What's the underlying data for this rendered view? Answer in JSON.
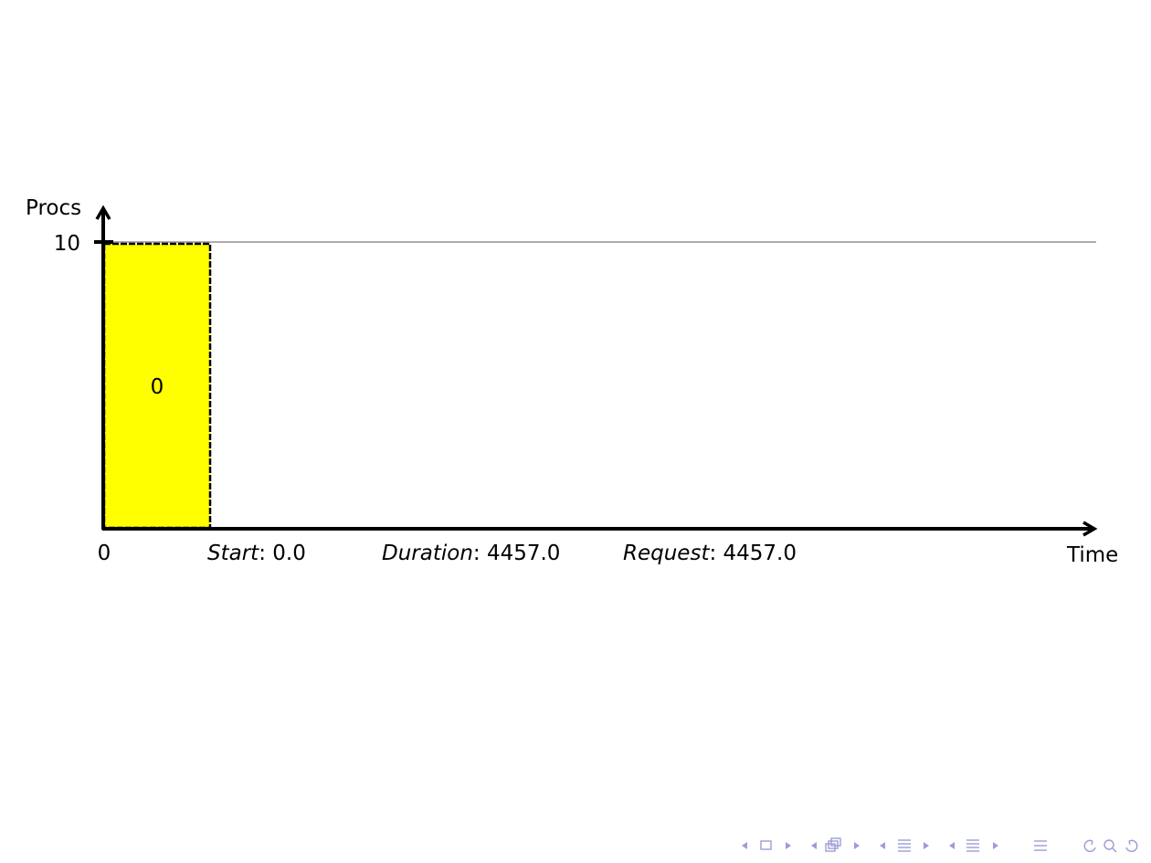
{
  "diagram": {
    "y_axis_label": "Procs",
    "x_axis_label": "Time",
    "y_max": 10,
    "y_max_label": "10",
    "x_origin_label": "0",
    "job": {
      "id_label": "0",
      "start": 0.0,
      "duration": 4457.0,
      "procs": 10,
      "color": "#ffff00"
    },
    "info": {
      "start_key": "Start",
      "start_value": ": 0.0",
      "duration_key": "Duration",
      "duration_value": ": 4457.0",
      "request_key": "Request",
      "request_value": ": 4457.0"
    },
    "colors": {
      "axis": "#000000",
      "limit_line": "#7a7a7a",
      "nav": "#9c9cd6"
    }
  },
  "navigation": {
    "icons": [
      "nav-left-arrow-icon",
      "frame-icon",
      "nav-right-arrow-icon",
      "nav-left-arrow-icon",
      "subsection-icon",
      "nav-right-arrow-icon",
      "nav-left-arrow-icon",
      "section-icon",
      "nav-right-arrow-icon",
      "nav-left-arrow-icon",
      "slides-icon",
      "nav-right-arrow-icon",
      "align-icon",
      "undo-icon",
      "search-icon",
      "redo-icon"
    ]
  }
}
